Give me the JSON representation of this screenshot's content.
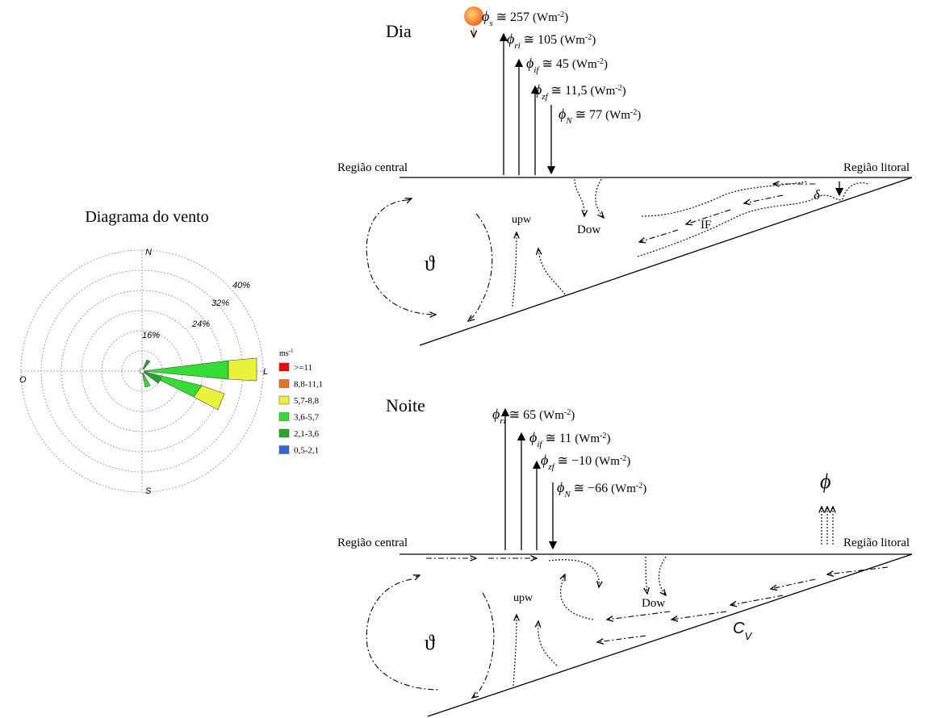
{
  "day": {
    "title": "Dia",
    "fluxes": [
      {
        "symbol": "ϕ",
        "sub": "s",
        "eq": " ≅ 257 ",
        "unit": "(Wm",
        "exp": "-2",
        "close": ")"
      },
      {
        "symbol": "ϕ",
        "sub": "ri",
        "eq": " ≅ 105 ",
        "unit": "(Wm",
        "exp": "-2",
        "close": ")"
      },
      {
        "symbol": "ϕ",
        "sub": "if",
        "eq": " ≅ 45 ",
        "unit": "(Wm",
        "exp": "-2",
        "close": ")"
      },
      {
        "symbol": "ϕ",
        "sub": "zf",
        "eq": " ≅ 11,5 ",
        "unit": "(Wm",
        "exp": "-2",
        "close": ")"
      },
      {
        "symbol": "ϕ",
        "sub": "N",
        "eq": " ≅ 77 ",
        "unit": "(Wm",
        "exp": "-2",
        "close": ")"
      }
    ],
    "region_central": "Região central",
    "region_litoral": "Região litoral",
    "upw": "upw",
    "dow": "Dow",
    "if": "IF",
    "delta": "δ",
    "theta": "ϑ"
  },
  "night": {
    "title": "Noite",
    "fluxes": [
      {
        "symbol": "ϕ",
        "sub": "ri",
        "eq": " ≅ 65 ",
        "unit": "(Wm",
        "exp": "-2",
        "close": ")"
      },
      {
        "symbol": "ϕ",
        "sub": "if",
        "eq": " ≅ 11 ",
        "unit": "(Wm",
        "exp": "-2",
        "close": ")"
      },
      {
        "symbol": "ϕ",
        "sub": "zf",
        "eq": " ≅ −10 ",
        "unit": "(Wm",
        "exp": "-2",
        "close": ")"
      },
      {
        "symbol": "ϕ",
        "sub": "N",
        "eq": " ≅ −66 ",
        "unit": "(Wm",
        "exp": "-2",
        "close": ")"
      }
    ],
    "region_central": "Região central",
    "region_litoral": "Região litoral",
    "upw": "upw",
    "dow": "Dow",
    "cv": {
      "main": "C",
      "sub": "V"
    },
    "phi": "ϕ",
    "theta": "ϑ"
  },
  "wind_rose": {
    "title": "Diagrama do vento",
    "directions": {
      "north": "N",
      "south": "S",
      "west": "O",
      "east": "L"
    },
    "rings": [
      "16%",
      "24%",
      "32%",
      "40%"
    ],
    "legend_unit": {
      "main": "ms",
      "exp": "-1"
    },
    "legend": [
      {
        "label": ">=11",
        "color": "#ff0000"
      },
      {
        "label": "8,8-11,1",
        "color": "#f07018"
      },
      {
        "label": "5,7-8,8",
        "color": "#eaf23a"
      },
      {
        "label": "3,6-5,7",
        "color": "#33dd33"
      },
      {
        "label": "2,1-3,6",
        "color": "#22aa22"
      },
      {
        "label": "0,5-2,1",
        "color": "#3366dd"
      }
    ]
  }
}
